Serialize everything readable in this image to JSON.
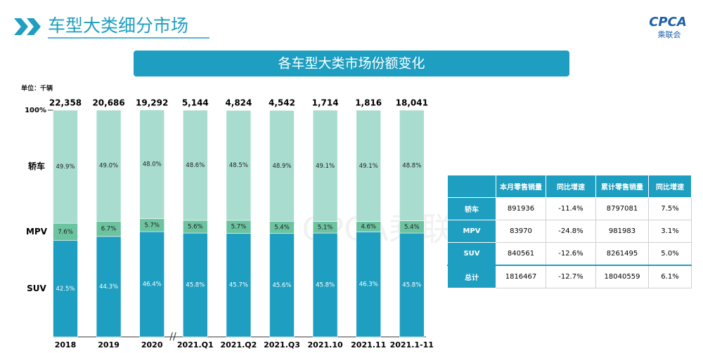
{
  "header": {
    "title": "车型大类细分市场",
    "logo_text": "CPCA",
    "logo_subtext": "乘联会"
  },
  "banner": "各车型大类市场份额变化",
  "unit": "单位：千辆",
  "watermark": "CPCA乘联会",
  "chart_data": {
    "type": "stacked_bar",
    "categories": [
      "2018",
      "2019",
      "2020",
      "2021.Q1",
      "2021.Q2",
      "2021.Q3",
      "2021.10",
      "2021.11",
      "2021.1-11"
    ],
    "series": [
      {
        "name": "SUV",
        "color": "#1e9ec0",
        "values": [
          42.5,
          44.3,
          46.4,
          45.8,
          45.7,
          45.6,
          45.8,
          46.3,
          45.8
        ],
        "value_labels": [
          "42.5%",
          "44.3%",
          "46.4%",
          "45.8%",
          "45.7%",
          "45.6%",
          "45.8%",
          "46.3%",
          "45.8%"
        ]
      },
      {
        "name": "MPV",
        "color": "#6cc3a0",
        "values": [
          7.6,
          6.7,
          5.7,
          5.6,
          5.7,
          5.4,
          5.1,
          4.6,
          5.4
        ],
        "value_labels": [
          "7.6%",
          "6.7%",
          "5.7%",
          "5.6%",
          "5.7%",
          "5.4%",
          "5.1%",
          "4.6%",
          "5.4%"
        ]
      },
      {
        "name": "轿车",
        "color": "#a8dccf",
        "values": [
          49.9,
          49.0,
          48.0,
          48.6,
          48.5,
          48.9,
          49.1,
          49.1,
          48.8
        ],
        "value_labels": [
          "49.9%",
          "49.0%",
          "48.0%",
          "48.6%",
          "48.5%",
          "48.9%",
          "49.1%",
          "49.1%",
          "48.8%"
        ]
      }
    ],
    "totals": {
      "values": [
        22358,
        20686,
        19292,
        5144,
        4824,
        4542,
        1714,
        1816,
        18041
      ],
      "value_labels": [
        "22,358",
        "20,686",
        "19,292",
        "5,144",
        "4,824",
        "4,542",
        "1,714",
        "1,816",
        "18,041"
      ]
    },
    "ylim": [
      0,
      100
    ],
    "yticks": [
      {
        "value": 100,
        "label": "100%"
      }
    ]
  },
  "table": {
    "columns": [
      "本月零售销量",
      "同比增速",
      "累计零售销量",
      "同比增速"
    ],
    "rows": [
      [
        "轿车",
        "891936",
        "-11.4%",
        "8797081",
        "7.5%"
      ],
      [
        "MPV",
        "83970",
        "-24.8%",
        "981983",
        "3.1%"
      ],
      [
        "SUV",
        "840561",
        "-12.6%",
        "8261495",
        "5.0%"
      ],
      [
        "总计",
        "1816467",
        "-12.7%",
        "18040559",
        "6.1%"
      ]
    ]
  }
}
